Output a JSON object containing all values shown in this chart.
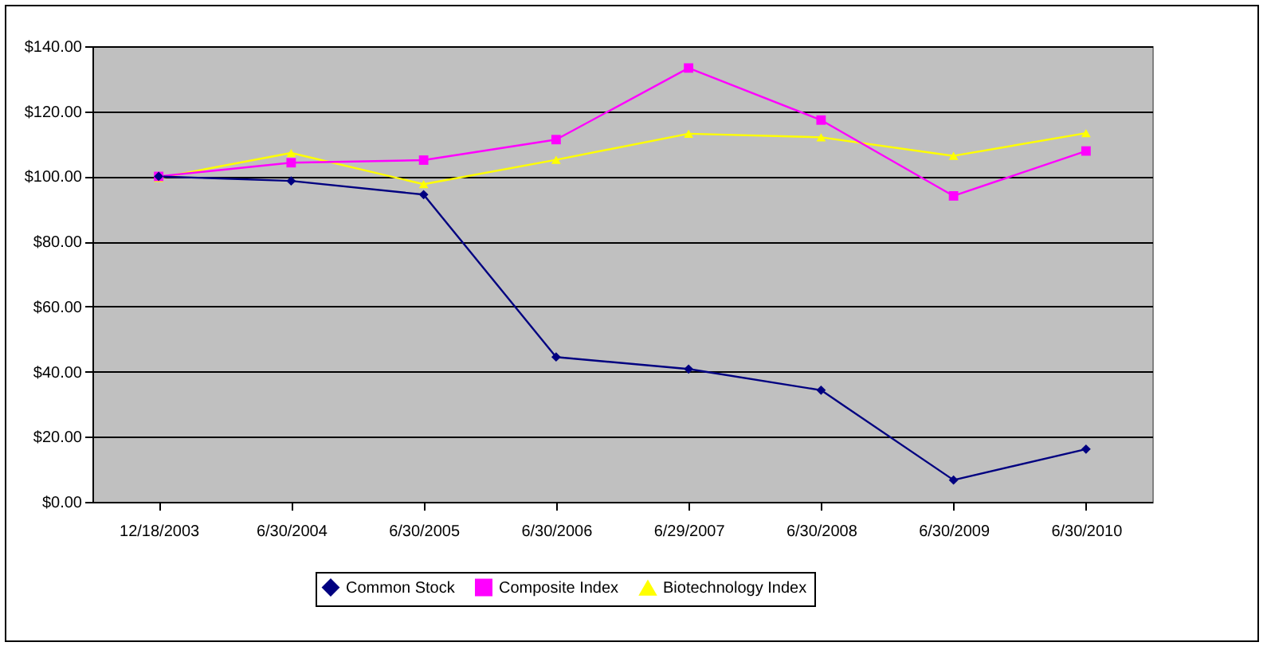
{
  "chart_data": {
    "type": "line",
    "categories": [
      "12/18/2003",
      "6/30/2004",
      "6/30/2005",
      "6/30/2006",
      "6/29/2007",
      "6/30/2008",
      "6/30/2009",
      "6/30/2010"
    ],
    "series": [
      {
        "name": "Common Stock",
        "color": "#000080",
        "marker": "diamond",
        "values": [
          100,
          98.6,
          94.4,
          44.5,
          40.8,
          34.3,
          6.7,
          16.2
        ]
      },
      {
        "name": "Composite Index",
        "color": "#ff00ff",
        "marker": "square",
        "values": [
          100,
          104.2,
          105.0,
          111.3,
          133.3,
          117.3,
          94.0,
          107.8
        ]
      },
      {
        "name": "Biotechnology Index",
        "color": "#ffff00",
        "marker": "triangle",
        "values": [
          99.5,
          107.2,
          97.6,
          105.1,
          113.1,
          112.0,
          106.3,
          113.3
        ]
      }
    ],
    "ylim": [
      0,
      140
    ],
    "yticks": [
      {
        "value": 0,
        "label": "$0.00"
      },
      {
        "value": 20,
        "label": "$20.00"
      },
      {
        "value": 40,
        "label": "$40.00"
      },
      {
        "value": 60,
        "label": "$60.00"
      },
      {
        "value": 80,
        "label": "$80.00"
      },
      {
        "value": 100,
        "label": "$100.00"
      },
      {
        "value": 120,
        "label": "$120.00"
      },
      {
        "value": 140,
        "label": "$140.00"
      }
    ],
    "grid": "y",
    "legend": "bottom"
  }
}
